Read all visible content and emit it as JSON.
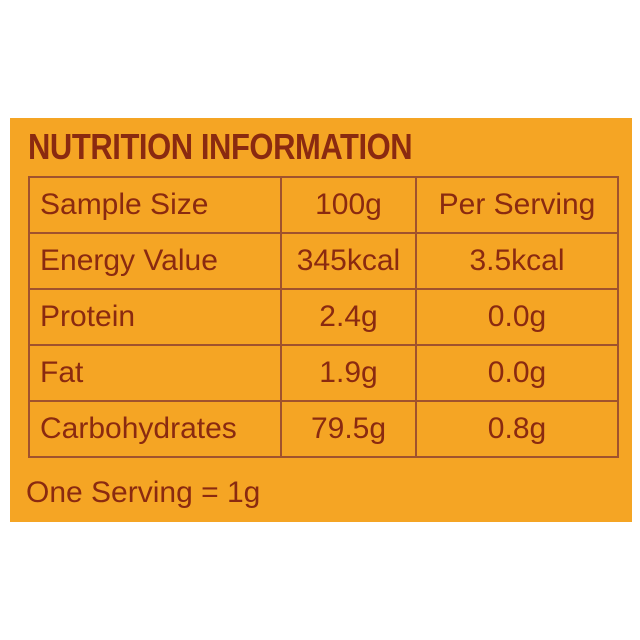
{
  "header": {
    "title": "NUTRITION INFORMATION"
  },
  "table": {
    "rows": [
      [
        "Sample Size",
        "100g",
        "Per Serving"
      ],
      [
        "Energy Value",
        "345kcal",
        "3.5kcal"
      ],
      [
        "Protein",
        "2.4g",
        "0.0g"
      ],
      [
        "Fat",
        "1.9g",
        "0.0g"
      ],
      [
        "Carbohydrates",
        "79.5g",
        "0.8g"
      ]
    ]
  },
  "footer": {
    "note": "One Serving = 1g"
  }
}
